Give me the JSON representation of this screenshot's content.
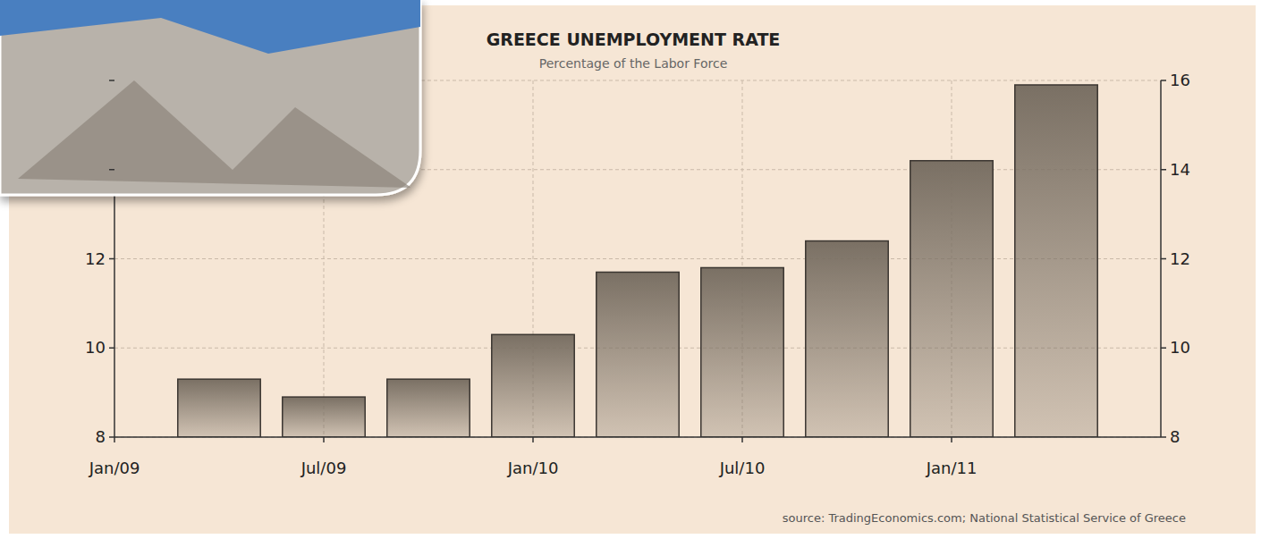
{
  "chart_data": {
    "type": "bar",
    "title": "GREECE UNEMPLOYMENT RATE",
    "subtitle": "Percentage of the Labor Force",
    "annotations": [
      "source: TradingEconomics.com; National Statistical Service of Greece"
    ],
    "categories": [
      "Jan/09",
      null,
      "Jul/09",
      null,
      "Jan/10",
      null,
      "Jul/10",
      null,
      "Jan/11",
      null
    ],
    "values": [
      null,
      9.3,
      8.9,
      9.3,
      10.3,
      11.7,
      11.8,
      12.4,
      14.2,
      15.9
    ],
    "color": "#7a7064",
    "ylim": [
      8,
      16
    ],
    "yticks": [
      8,
      10,
      12,
      14,
      16
    ],
    "grid": true
  }
}
